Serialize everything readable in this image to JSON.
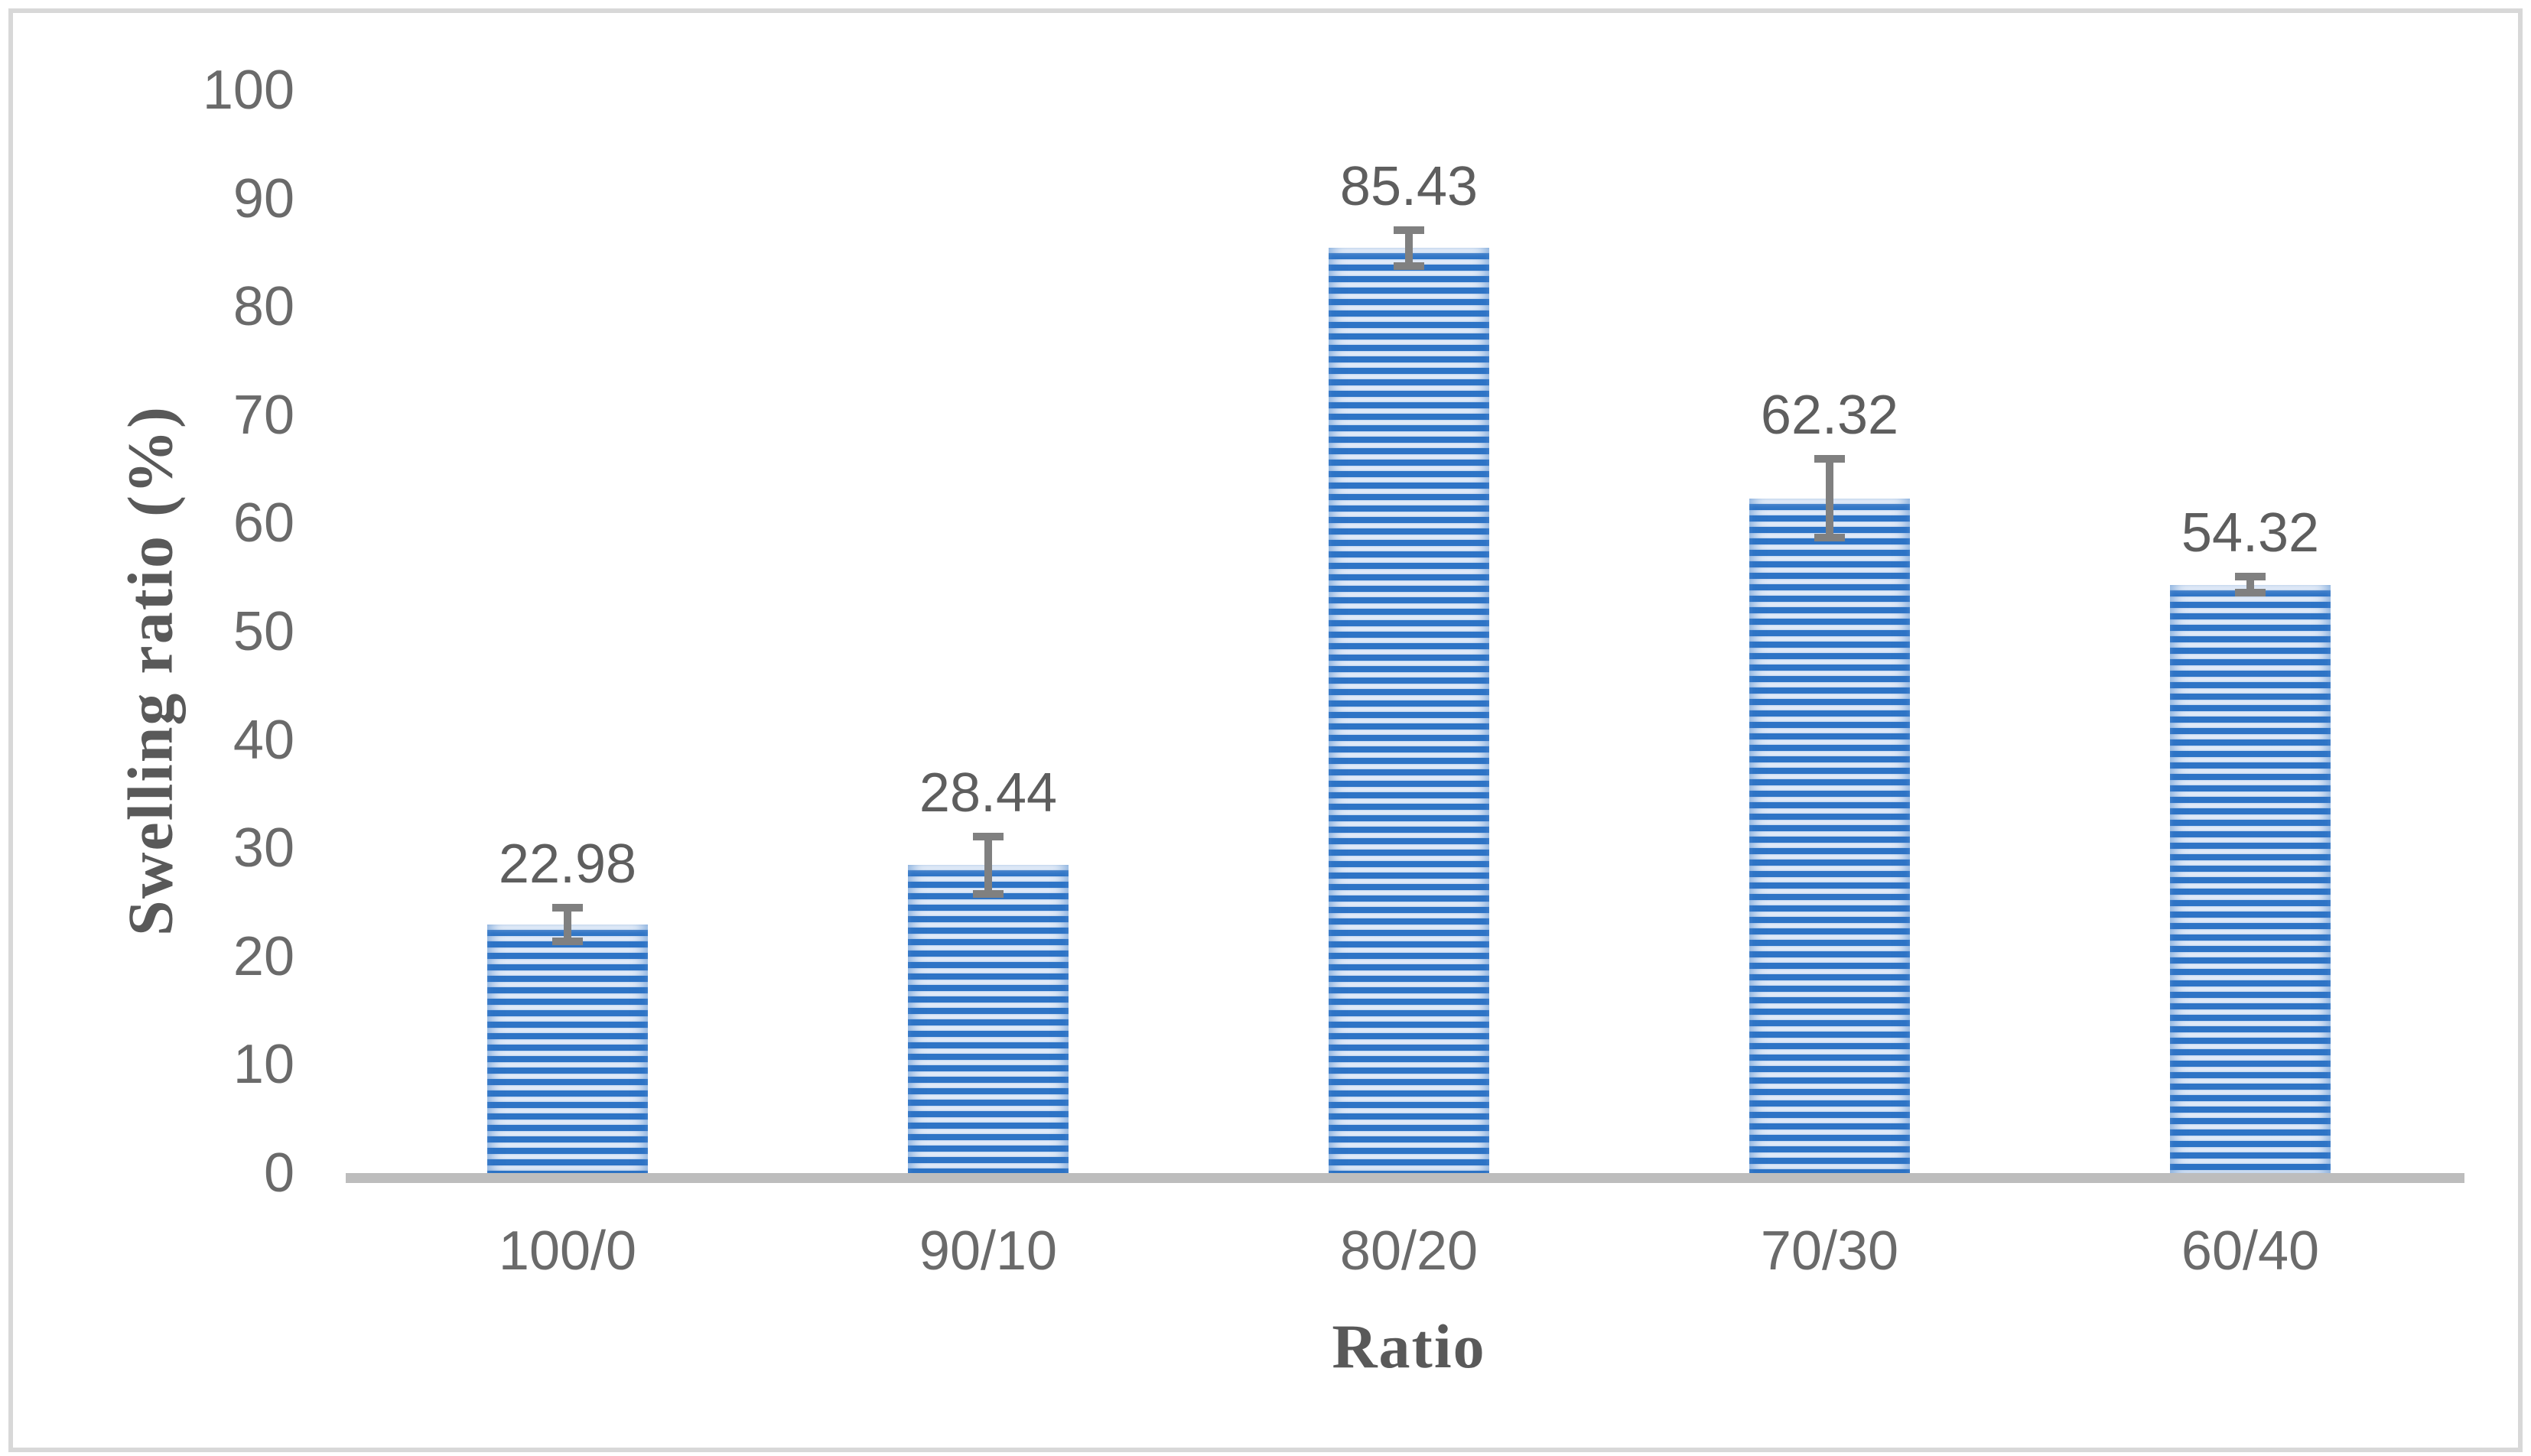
{
  "chart_data": {
    "type": "bar",
    "title": "",
    "categories": [
      "100/0",
      "90/10",
      "80/20",
      "70/30",
      "60/40"
    ],
    "values": [
      22.98,
      28.44,
      85.43,
      62.32,
      54.32
    ],
    "data_labels": [
      "22.98",
      "28.44",
      "85.43",
      "62.32",
      "54.32"
    ],
    "error_bars_plus_minus": [
      1.9,
      3.0,
      2.0,
      4.0,
      1.1
    ],
    "xlabel": "Ratio",
    "ylabel": "Swelling ratio (%)",
    "ylim": [
      0,
      100
    ],
    "ytick_step": 10,
    "yticks": [
      0,
      10,
      20,
      30,
      40,
      50,
      60,
      70,
      80,
      90,
      100
    ],
    "grid": false,
    "legend": false,
    "layout_hints": {
      "bar_fill_pattern": "horizontal-stripes",
      "legend_position": "none"
    },
    "colors": {
      "bar_stripe_blue": "#2E74C6",
      "bar_stripe_light": "#E0EAF8",
      "bar_stripe_light_edge": "#C3D6EF",
      "axis_line_gray": "#BDBDBD",
      "error_bar_gray": "#808080",
      "tick_text_gray": "#6A6A6A",
      "title_text_gray": "#595959",
      "frame_border_gray": "#D8D8D8",
      "background": "#FFFFFF"
    }
  }
}
